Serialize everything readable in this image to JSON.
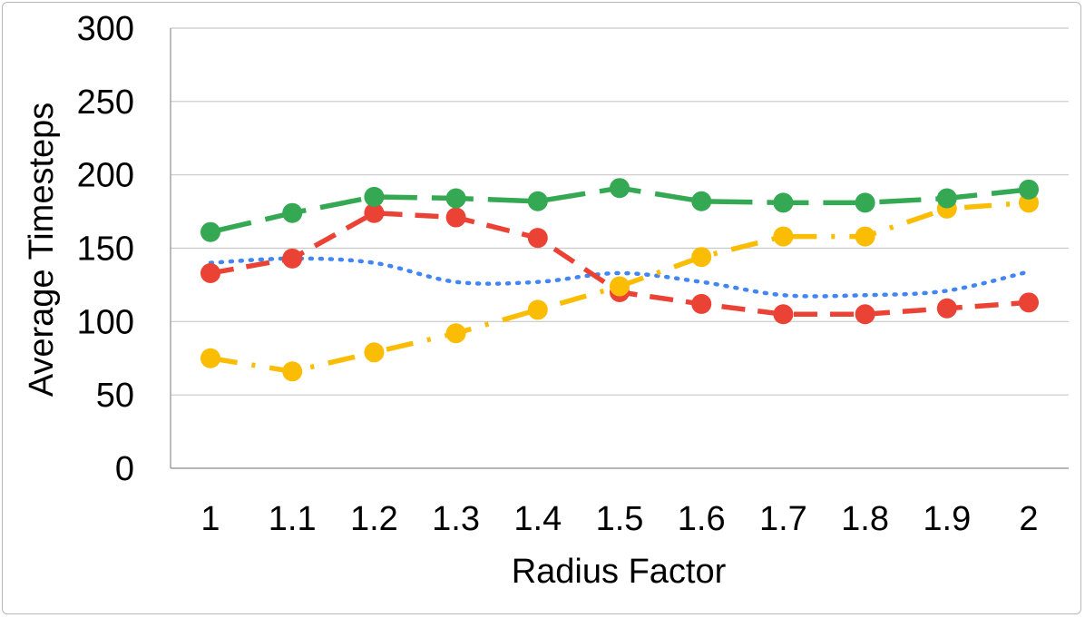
{
  "chart_data": {
    "type": "line",
    "xlabel": "Radius Factor",
    "ylabel": "Average Timesteps",
    "ylim": [
      0,
      300
    ],
    "yticks": [
      "0",
      "50",
      "100",
      "150",
      "200",
      "250",
      "300"
    ],
    "yticks_values": [
      0,
      50,
      100,
      150,
      200,
      250,
      300
    ],
    "categories": [
      "1",
      "1.1",
      "1.2",
      "1.3",
      "1.4",
      "1.5",
      "1.6",
      "1.7",
      "1.8",
      "1.9",
      "2"
    ],
    "grid": "horizontal",
    "legend": "none",
    "series": [
      {
        "color": "#4285f4",
        "style": "dotted",
        "markers": false,
        "smooth": true,
        "values": [
          140,
          143,
          140,
          127,
          127,
          133,
          127,
          118,
          118,
          121,
          134
        ]
      },
      {
        "color": "#ea4335",
        "style": "dashed",
        "markers": true,
        "values": [
          133,
          143,
          174,
          171,
          157,
          120,
          112,
          105,
          105,
          109,
          113
        ]
      },
      {
        "color": "#fbbc04",
        "style": "dash-dot",
        "markers": true,
        "values": [
          75,
          66,
          79,
          92,
          108,
          124,
          144,
          158,
          158,
          177,
          181
        ]
      },
      {
        "color": "#34a853",
        "style": "long-dash",
        "markers": true,
        "values": [
          161,
          174,
          185,
          184,
          182,
          191,
          182,
          181,
          181,
          184,
          190
        ]
      }
    ]
  }
}
